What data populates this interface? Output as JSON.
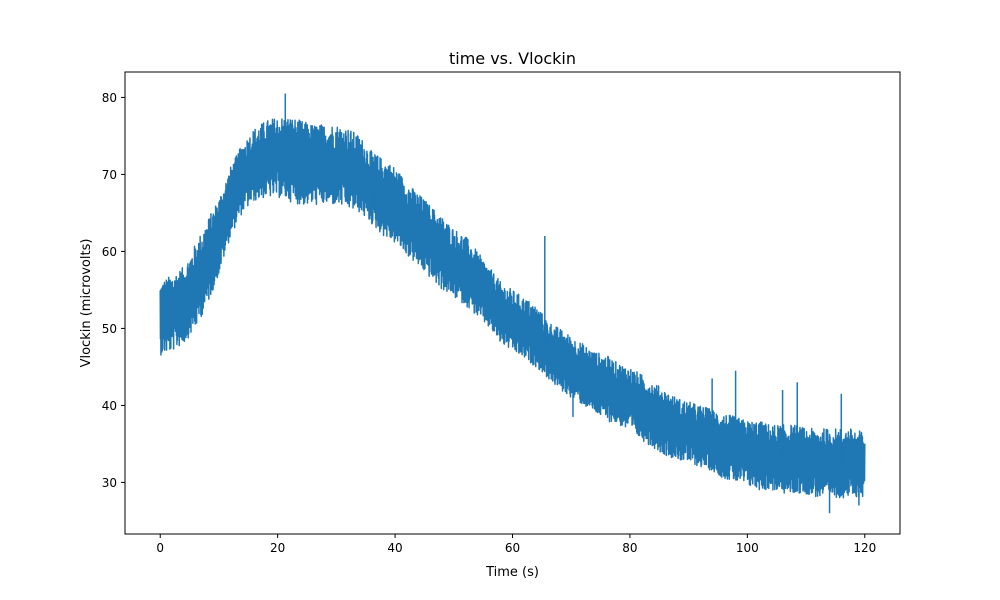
{
  "chart_data": {
    "type": "line",
    "title": "time vs. Vlockin",
    "xlabel": "Time (s)",
    "ylabel": "Vlockin (microvolts)",
    "xlim": [
      -6,
      126
    ],
    "ylim": [
      23.3,
      83.3
    ],
    "grid": false,
    "legend": "none",
    "xticks": [
      0,
      20,
      40,
      60,
      80,
      100,
      120
    ],
    "yticks": [
      30,
      40,
      50,
      60,
      70,
      80
    ],
    "series": [
      {
        "color": "#1f77b4",
        "x": [
          0,
          2,
          4,
          6,
          8,
          10,
          12,
          14,
          16,
          18,
          20,
          22,
          24,
          26,
          28,
          30,
          32,
          34,
          36,
          38,
          40,
          42,
          44,
          46,
          48,
          50,
          52,
          54,
          56,
          58,
          60,
          62,
          64,
          66,
          68,
          70,
          72,
          74,
          76,
          78,
          80,
          82,
          84,
          86,
          88,
          90,
          92,
          94,
          96,
          98,
          100,
          102,
          104,
          106,
          108,
          110,
          112,
          114,
          116,
          118,
          120
        ],
        "upper": [
          56,
          57,
          58,
          61,
          64,
          67,
          71,
          74,
          76,
          77,
          77.5,
          77.5,
          77,
          76.5,
          76.5,
          76.5,
          76,
          75,
          73,
          72,
          71,
          69,
          67.5,
          66,
          64.5,
          63,
          62,
          60,
          58,
          56,
          55,
          54,
          53,
          51,
          50,
          49,
          48,
          47,
          46.5,
          45.5,
          45,
          44,
          43,
          42,
          41,
          40.5,
          40,
          39.5,
          39,
          38.5,
          38,
          38,
          37.5,
          37.5,
          37.5,
          37,
          37,
          37,
          37,
          37,
          36.5
        ],
        "lower": [
          46.5,
          47,
          48,
          50,
          53,
          57,
          62,
          65,
          66.5,
          67,
          67,
          66.5,
          66,
          66,
          66,
          66,
          65.5,
          65,
          63.5,
          62,
          61,
          59.5,
          58,
          56.5,
          55,
          54,
          53,
          51.5,
          50,
          48,
          47,
          46,
          45,
          43.5,
          42,
          41,
          40,
          39,
          38,
          37.5,
          36.5,
          35.5,
          34.5,
          33.5,
          33,
          32.5,
          32,
          31.5,
          30.5,
          30,
          29.5,
          29,
          29,
          28.5,
          28.5,
          28.5,
          28,
          28,
          28,
          28,
          28
        ],
        "spikes": [
          {
            "x": 21.3,
            "y": 80.5
          },
          {
            "x": 36.5,
            "y": 65
          },
          {
            "x": 65.5,
            "y": 62
          },
          {
            "x": 70.3,
            "y": 38.5
          },
          {
            "x": 94,
            "y": 43.5
          },
          {
            "x": 98,
            "y": 44.5
          },
          {
            "x": 106,
            "y": 42
          },
          {
            "x": 108.5,
            "y": 43
          },
          {
            "x": 114,
            "y": 26
          },
          {
            "x": 116,
            "y": 41.5
          },
          {
            "x": 119,
            "y": 27
          }
        ]
      }
    ]
  }
}
